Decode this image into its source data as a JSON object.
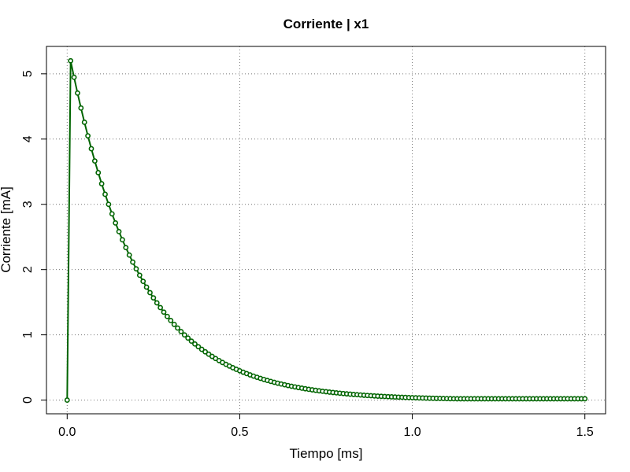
{
  "chart_data": {
    "type": "line",
    "title": "Corriente | x1",
    "xlabel": "Tiempo [ms]",
    "ylabel": "Corriente [mA]",
    "xlim": [
      -0.06,
      1.56
    ],
    "ylim": [
      -0.21,
      5.42
    ],
    "x_ticks": [
      0.0,
      0.5,
      1.0,
      1.5
    ],
    "x_tick_labels": [
      "0.0",
      "0.5",
      "1.0",
      "1.5"
    ],
    "y_ticks": [
      0,
      1,
      2,
      3,
      4,
      5
    ],
    "y_tick_labels": [
      "0",
      "1",
      "2",
      "3",
      "4",
      "5"
    ],
    "grid": true,
    "legend": "none",
    "series": [
      {
        "color": "#006400",
        "marker": "open-circle",
        "line": "solid",
        "x_start": 0.0,
        "x_step": 0.01,
        "points": 151,
        "first_value": 0.0,
        "peak_x": 0.01,
        "peak_value": 5.2,
        "decay_time_constant_ms": 0.2,
        "final_value": 0.02
      }
    ]
  }
}
